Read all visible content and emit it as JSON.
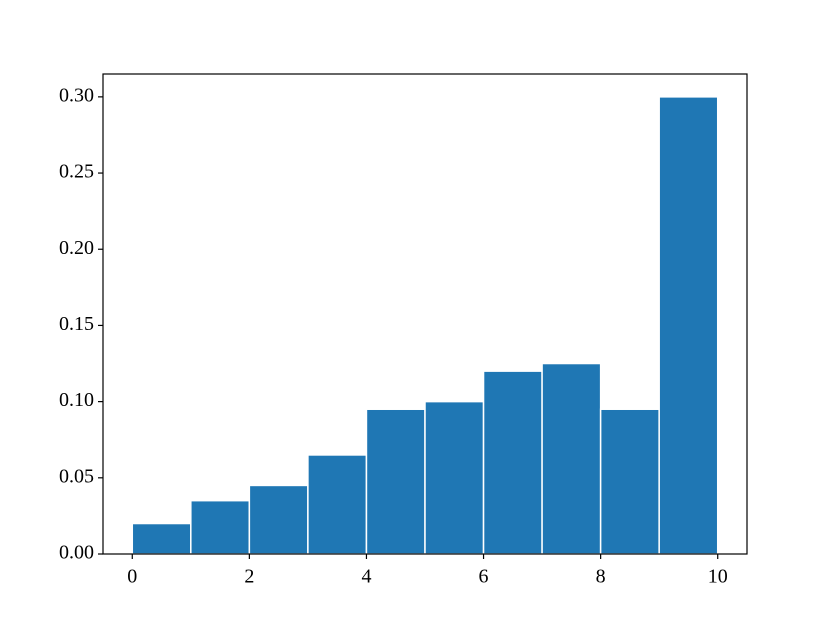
{
  "chart_data": {
    "type": "histogram",
    "bins": [
      0,
      1,
      2,
      3,
      4,
      5,
      6,
      7,
      8,
      9,
      10
    ],
    "values": [
      0.02,
      0.035,
      0.045,
      0.065,
      0.095,
      0.1,
      0.12,
      0.125,
      0.095,
      0.3
    ],
    "color": "#1f77b4",
    "edgecolor": "#ffffff",
    "xlim": [
      -0.5,
      10.5
    ],
    "ylim": [
      0,
      0.315
    ],
    "xticks": [
      0,
      2,
      4,
      6,
      8,
      10
    ],
    "yticks": [
      {
        "value": 0,
        "label": "0.00"
      },
      {
        "value": 0.05,
        "label": "0.05"
      },
      {
        "value": 0.1,
        "label": "0.10"
      },
      {
        "value": 0.15,
        "label": "0.15"
      },
      {
        "value": 0.2,
        "label": "0.20"
      },
      {
        "value": 0.25,
        "label": "0.25"
      },
      {
        "value": 0.3,
        "label": "0.30"
      }
    ]
  }
}
